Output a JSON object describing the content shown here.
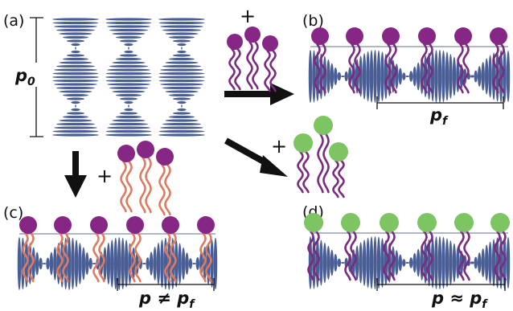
{
  "panels": {
    "a": "(a)",
    "b": "(b)",
    "c": "(c)",
    "d": "(d)"
  },
  "pitch_labels": {
    "a": {
      "main": "p",
      "sub": "0"
    },
    "b": {
      "main": "p",
      "sub": "f"
    },
    "c": {
      "main": "p ≠ p",
      "sub": "f"
    },
    "d": {
      "main": "p ≈ p",
      "sub": "f"
    }
  },
  "plus_sign": "+",
  "colors": {
    "lc_stripes": "#4a5e96",
    "purple_head": "#862685",
    "purple_tail": "#7b2a80",
    "green_head": "#7dc462",
    "orange_tail": "#e07a5f",
    "interface_line": "#7d8aa8",
    "ink": "#111111"
  }
}
